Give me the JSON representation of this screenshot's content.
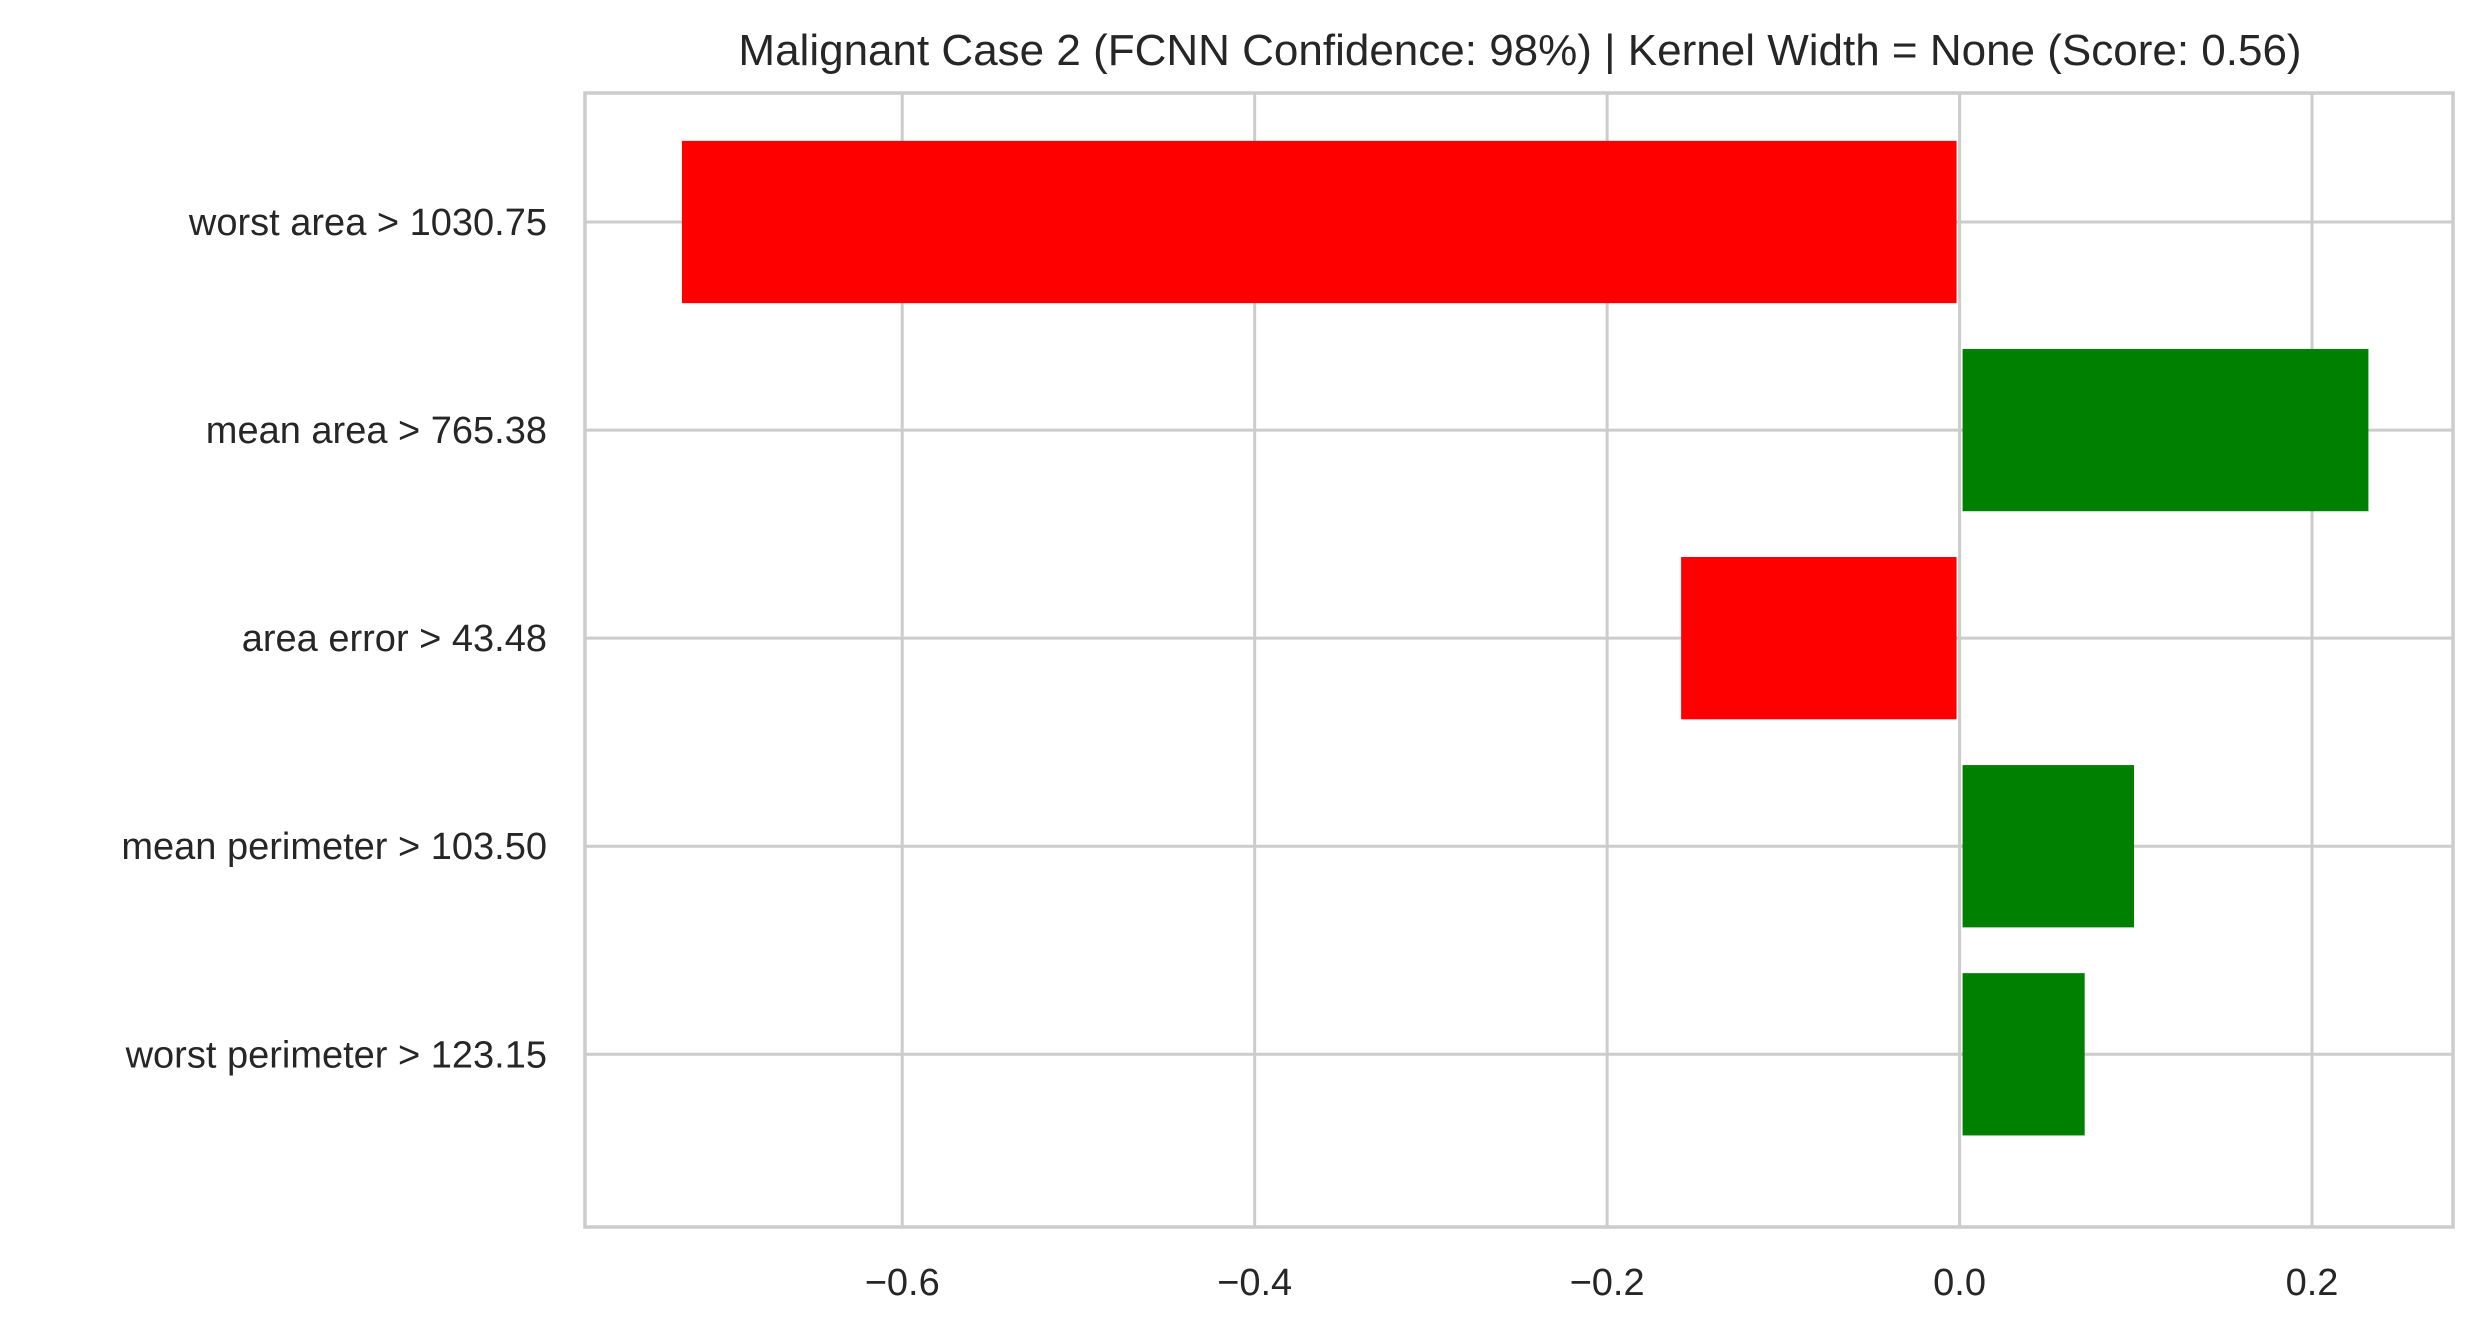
{
  "chart_data": {
    "type": "bar",
    "orientation": "horizontal",
    "title": "Malignant Case 2 (FCNN Confidence: 98%) | Kernel Width = None (Score: 0.56)",
    "xlabel": "",
    "ylabel": "",
    "categories": [
      "worst area > 1030.75",
      "mean area > 765.38",
      "area error > 43.48",
      "mean perimeter > 103.50",
      "worst perimeter > 123.15"
    ],
    "values": [
      -0.725,
      0.232,
      -0.158,
      0.099,
      0.071
    ],
    "x_ticks": [
      -0.6,
      -0.4,
      -0.2,
      0.0,
      0.2
    ],
    "x_tick_labels": [
      "−0.6",
      "−0.4",
      "−0.2",
      "0.0",
      "0.2"
    ],
    "xlim": [
      -0.78,
      0.28
    ],
    "grid": true,
    "colors": {
      "positive": "#008000",
      "negative": "#ff0000",
      "grid": "#cccccc",
      "frame": "#cccccc",
      "text": "#262626"
    }
  }
}
